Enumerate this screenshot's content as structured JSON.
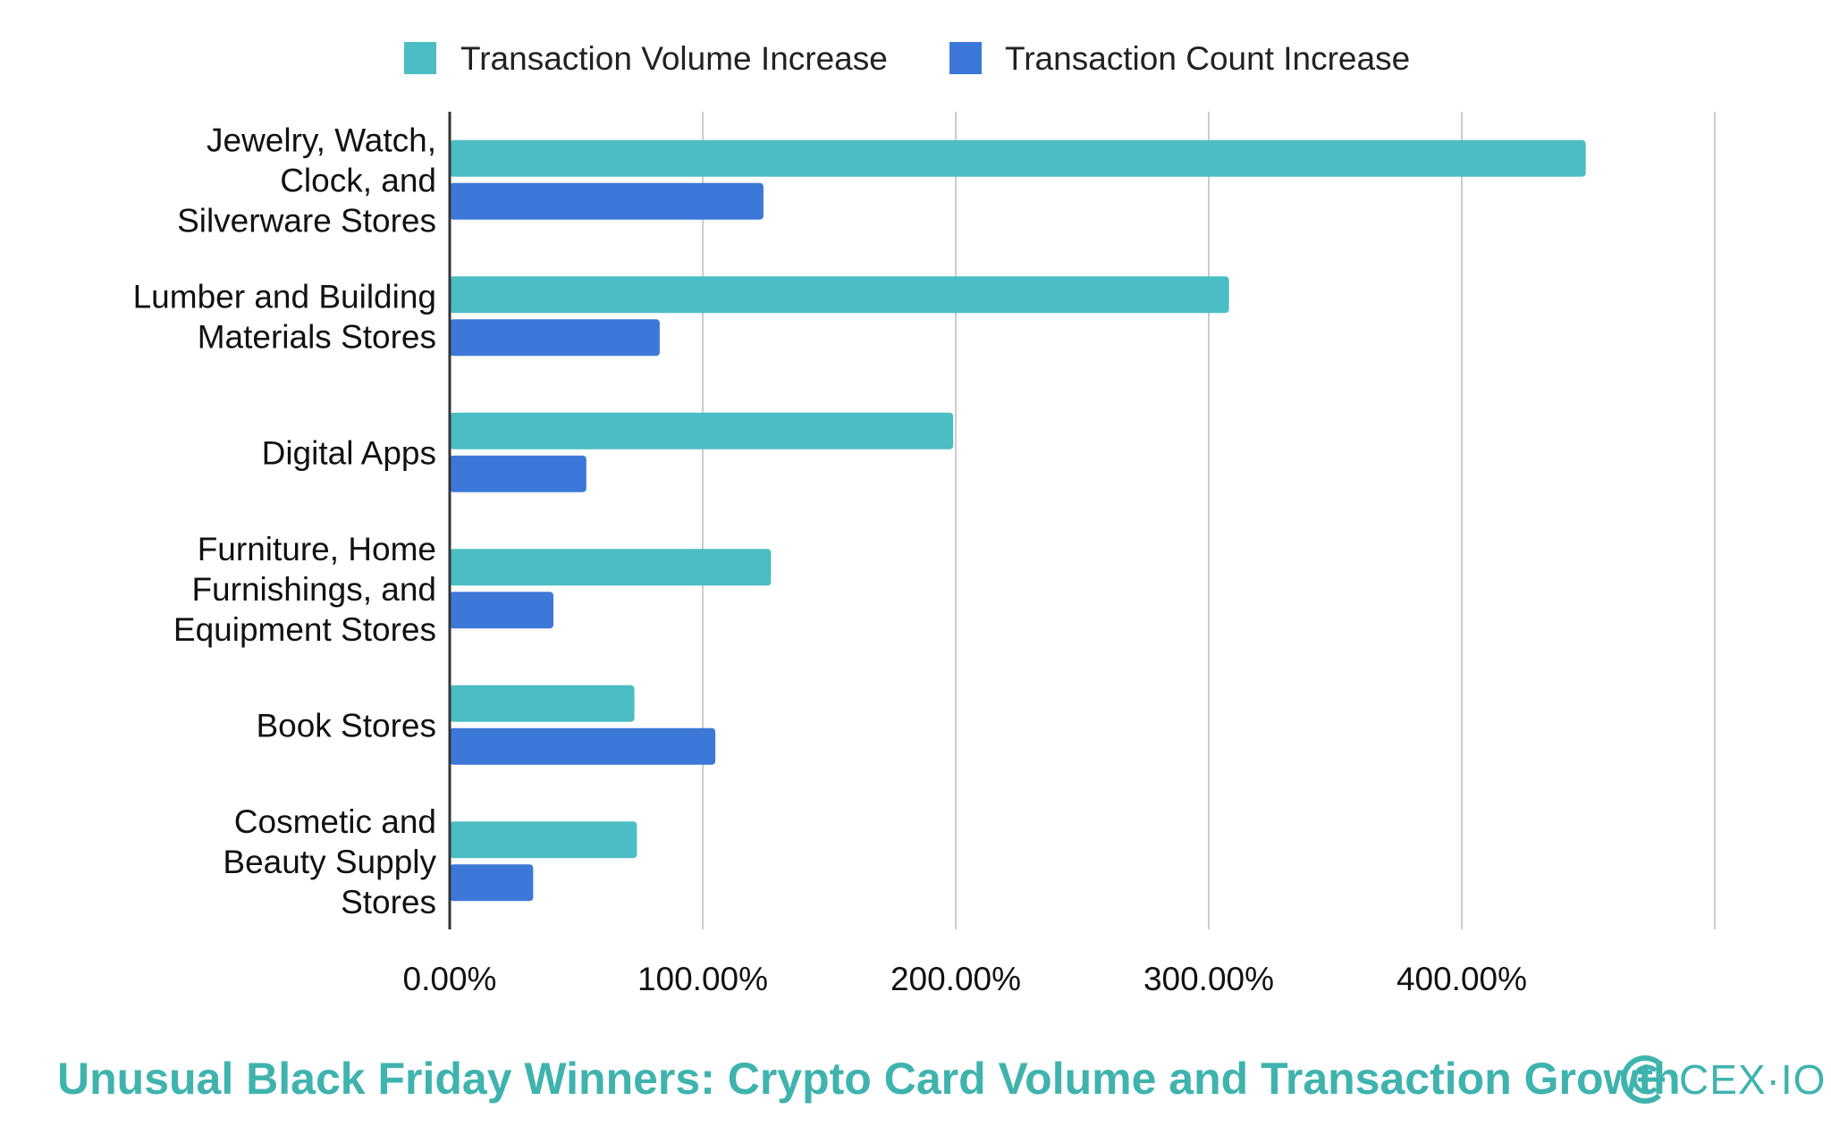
{
  "footer": {
    "title": "Unusual Black Friday Winners: Crypto Card Volume and Transaction Growth",
    "brand": "CEX·IO"
  },
  "colors": {
    "volume": "#4bbdc4",
    "count": "#3c78d8",
    "brand": "#3fb3ae",
    "grid": "#cccccc",
    "axis": "#333333"
  },
  "chart_data": {
    "type": "bar",
    "orientation": "horizontal",
    "categories": [
      [
        "Jewelry, Watch,",
        "Clock, and",
        "Silverware Stores"
      ],
      [
        "Lumber and Building",
        "Materials Stores"
      ],
      [
        "Digital Apps"
      ],
      [
        "Furniture, Home",
        "Furnishings, and",
        "Equipment Stores"
      ],
      [
        "Book Stores"
      ],
      [
        "Cosmetic and",
        "Beauty Supply",
        "Stores"
      ]
    ],
    "series": [
      {
        "name": "Transaction Volume Increase",
        "values": [
          449,
          308,
          199,
          127,
          73,
          74
        ]
      },
      {
        "name": "Transaction Count Increase",
        "values": [
          124,
          83,
          54,
          41,
          105,
          33
        ]
      }
    ],
    "xlim": [
      0,
      500
    ],
    "xticks": [
      "0.00%",
      "100.00%",
      "200.00%",
      "300.00%",
      "400.00%"
    ],
    "grid": true,
    "legend": "top-center"
  }
}
